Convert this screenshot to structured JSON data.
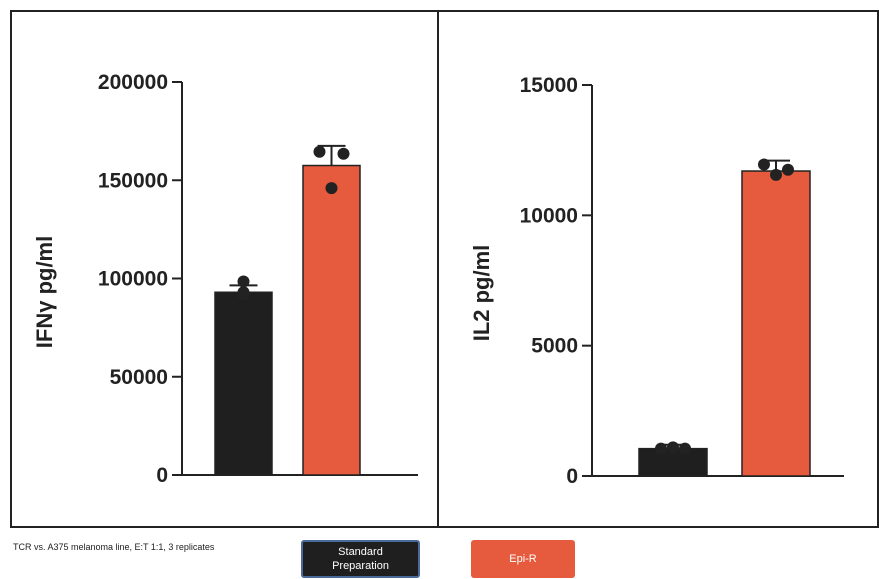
{
  "chart_data": [
    {
      "type": "bar",
      "ylabel": "IFNγ pg/ml",
      "ylim": [
        0,
        200000
      ],
      "yticks": [
        0,
        50000,
        100000,
        150000,
        200000
      ],
      "categories": [
        "Standard Preparation",
        "Epi-R"
      ],
      "colors": [
        "#1f1f1f",
        "#e65a3d"
      ],
      "values": [
        93000,
        157500
      ],
      "error": [
        3500,
        10000
      ],
      "points": [
        [
          93000,
          98500,
          92000
        ],
        [
          164500,
          146000,
          163500
        ]
      ]
    },
    {
      "type": "bar",
      "ylabel": "IL2 pg/ml",
      "ylim": [
        0,
        15000
      ],
      "yticks": [
        0,
        5000,
        10000,
        15000
      ],
      "categories": [
        "Standard Preparation",
        "Epi-R"
      ],
      "colors": [
        "#1f1f1f",
        "#e65a3d"
      ],
      "values": [
        1050,
        11700
      ],
      "error": [
        150,
        400
      ],
      "points": [
        [
          1050,
          1100,
          1050
        ],
        [
          11950,
          11550,
          11750
        ]
      ]
    }
  ],
  "footnote": "TCR vs. A375 melanoma line, E:T 1:1, 3 replicates",
  "legend": [
    {
      "label": "Standard\nPreparation",
      "color": "#1f1f1f"
    },
    {
      "label": "Epi-R",
      "color": "#e65a3d"
    }
  ]
}
